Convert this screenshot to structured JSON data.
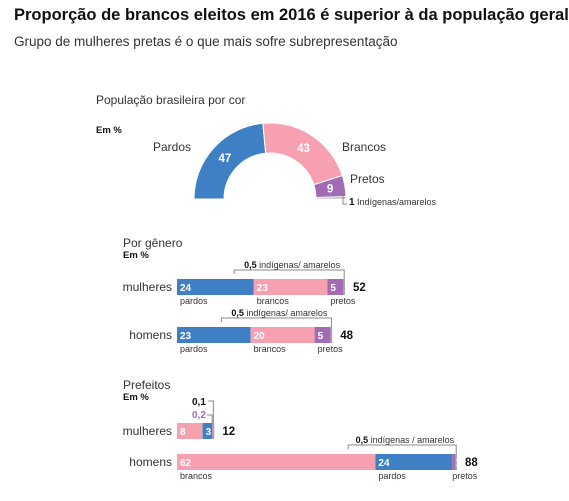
{
  "title": "Proporção de brancos eleitos em 2016 é superior à da população geral",
  "subtitle": "Grupo de mulheres pretas é o que mais sofre subrepresentação",
  "colors": {
    "pardos": "#3f7fc4",
    "brancos": "#f7a1b0",
    "pretos": "#a26bb4",
    "amarelos": "#a8a8a8"
  },
  "chart_data": [
    {
      "type": "pie",
      "title": "População brasileira por cor",
      "unit_label": "Em %",
      "slices": [
        {
          "name": "Pardos",
          "value": 47
        },
        {
          "name": "Brancos",
          "value": 43
        },
        {
          "name": "Pretos",
          "value": 9
        },
        {
          "name": "Indígenas/amarelos",
          "value": 1
        }
      ]
    },
    {
      "type": "bar",
      "title": "Por gênero",
      "unit_label": "Em %",
      "categories": [
        "mulheres",
        "homens"
      ],
      "totals": [
        52,
        48
      ],
      "series": [
        {
          "name": "pardos",
          "values": [
            24,
            23
          ]
        },
        {
          "name": "brancos",
          "values": [
            23,
            20
          ]
        },
        {
          "name": "pretos",
          "values": [
            5,
            5
          ]
        },
        {
          "name": "indígenas/ amarelos",
          "values": [
            0.5,
            0.5
          ]
        }
      ],
      "callout_label": "indígenas/ amarelos"
    },
    {
      "type": "bar",
      "title": "Prefeitos",
      "unit_label": "Em %",
      "categories": [
        "mulheres",
        "homens"
      ],
      "totals": [
        12,
        88
      ],
      "series": [
        {
          "name": "brancos",
          "values": [
            8,
            62
          ]
        },
        {
          "name": "pardos",
          "values": [
            3,
            24
          ]
        },
        {
          "name": "pretos",
          "values": [
            0.2,
            1
          ]
        },
        {
          "name": "indígenas / amarelos",
          "values": [
            0.1,
            0.5
          ]
        }
      ],
      "callout_label": "indígenas / amarelos"
    }
  ]
}
